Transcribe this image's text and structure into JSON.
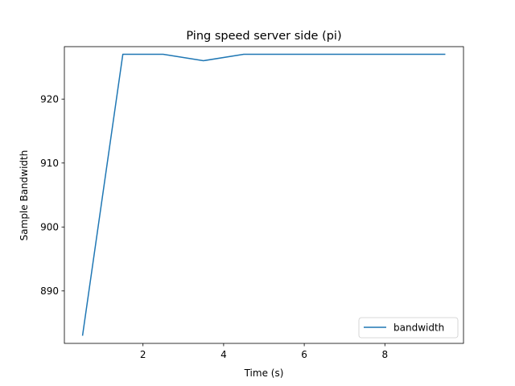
{
  "chart_data": {
    "type": "line",
    "title": "Ping speed server side (pi)",
    "xlabel": "Time (s)",
    "ylabel": "Sample Bandwidth",
    "xlim": [
      0.05,
      9.95
    ],
    "ylim": [
      881.8,
      928.2
    ],
    "xticks": [
      2,
      4,
      6,
      8
    ],
    "yticks": [
      890,
      900,
      910,
      920
    ],
    "grid": false,
    "legend_position": "lower right",
    "series": [
      {
        "name": "bandwidth",
        "color": "#1f77b4",
        "x": [
          0.5,
          1.5,
          2.5,
          3.5,
          4.5,
          5.5,
          6.5,
          7.5,
          8.5,
          9.5
        ],
        "y": [
          883,
          927,
          927,
          926,
          927,
          927,
          927,
          927,
          927,
          927
        ]
      }
    ]
  }
}
